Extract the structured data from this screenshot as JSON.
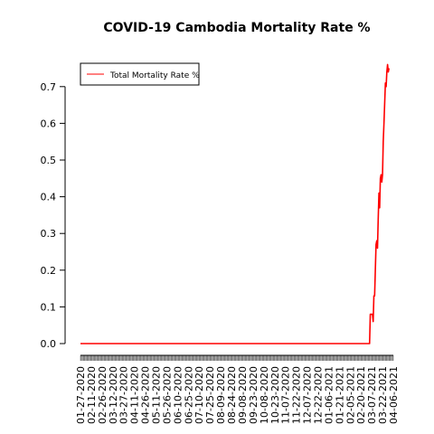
{
  "chart_data": {
    "type": "line",
    "title": "COVID-19 Cambodia Mortality Rate %",
    "xlabel": "",
    "ylabel": "",
    "x_tick_labels": [
      "01-27-2020",
      "02-11-2020",
      "02-26-2020",
      "03-12-2020",
      "03-27-2020",
      "04-11-2020",
      "04-26-2020",
      "05-11-2020",
      "05-26-2020",
      "06-10-2020",
      "06-25-2020",
      "07-10-2020",
      "07-25-2020",
      "08-09-2020",
      "08-24-2020",
      "09-08-2020",
      "09-23-2020",
      "10-08-2020",
      "10-23-2020",
      "11-07-2020",
      "11-22-2020",
      "12-07-2020",
      "12-22-2020",
      "01-06-2021",
      "01-21-2021",
      "02-05-2021",
      "02-20-2021",
      "03-07-2021",
      "03-22-2021",
      "04-06-2021"
    ],
    "y_ticks": [
      0.0,
      0.1,
      0.2,
      0.3,
      0.4,
      0.5,
      0.6,
      0.7
    ],
    "y_tick_labels": [
      "0.0",
      "0.1",
      "0.2",
      "0.3",
      "0.4",
      "0.5",
      "0.6",
      "0.7"
    ],
    "ylim": [
      0.0,
      0.76
    ],
    "x_range": [
      "01-27-2020",
      "04-06-2021"
    ],
    "grid": false,
    "legend": {
      "position": "top-left",
      "entries": [
        "Total Mortality Rate %"
      ]
    },
    "series": [
      {
        "name": "Total Mortality Rate %",
        "color": "#ff0000",
        "points": [
          [
            "01-27-2020",
            0.0
          ],
          [
            "03-04-2021",
            0.0
          ],
          [
            "03-05-2021",
            0.08
          ],
          [
            "03-08-2021",
            0.08
          ],
          [
            "03-09-2021",
            0.06
          ],
          [
            "03-10-2021",
            0.13
          ],
          [
            "03-11-2021",
            0.13
          ],
          [
            "03-12-2021",
            0.2
          ],
          [
            "03-13-2021",
            0.27
          ],
          [
            "03-14-2021",
            0.28
          ],
          [
            "03-15-2021",
            0.26
          ],
          [
            "03-16-2021",
            0.34
          ],
          [
            "03-17-2021",
            0.41
          ],
          [
            "03-18-2021",
            0.37
          ],
          [
            "03-19-2021",
            0.45
          ],
          [
            "03-20-2021",
            0.46
          ],
          [
            "03-21-2021",
            0.44
          ],
          [
            "03-22-2021",
            0.46
          ],
          [
            "03-23-2021",
            0.55
          ],
          [
            "03-24-2021",
            0.6
          ],
          [
            "03-26-2021",
            0.71
          ],
          [
            "03-27-2021",
            0.7
          ],
          [
            "03-28-2021",
            0.74
          ],
          [
            "03-29-2021",
            0.76
          ],
          [
            "03-30-2021",
            0.74
          ],
          [
            "03-31-2021",
            0.75
          ]
        ]
      }
    ]
  }
}
